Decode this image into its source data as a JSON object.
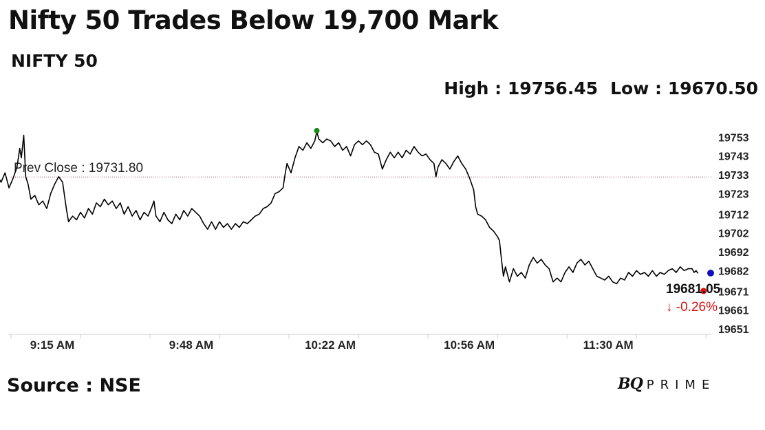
{
  "header": {
    "title": "Nifty 50 Trades Below 19,700 Mark",
    "subtitle": "NIFTY 50"
  },
  "stats": {
    "high_label": "High : 19756.45",
    "low_label": "Low : 19670.50"
  },
  "footer": {
    "source": "Source : NSE",
    "logo_bq": "BQ",
    "logo_prime": "PRIME"
  },
  "colors": {
    "line": "#000000",
    "prev_close_line": "#a05050",
    "high_marker": "#1a8a1a",
    "low_marker": "#e01010",
    "current_marker": "#1010c0",
    "change_negative": "#e01010",
    "axis": "#cccccc"
  },
  "chart_data": {
    "type": "line",
    "ylim": [
      19651,
      19763
    ],
    "y_ticks": [
      19753,
      19743,
      19733,
      19723,
      19712,
      19702,
      19692,
      19682,
      19671,
      19661,
      19651
    ],
    "x_range_minutes": [
      0,
      176
    ],
    "x_ticks": [
      {
        "label": "9:15 AM",
        "minute": 0
      },
      {
        "label": "9:48 AM",
        "minute": 35
      },
      {
        "label": "10:22 AM",
        "minute": 70
      },
      {
        "label": "10:56 AM",
        "minute": 105
      },
      {
        "label": "11:30 AM",
        "minute": 140
      }
    ],
    "prev_close": {
      "value": 19731.8,
      "label": "Prev Close : 19731.80"
    },
    "high": {
      "value": 19756.45,
      "minute": 77
    },
    "current": {
      "value": 19681.05,
      "label": "19681.05",
      "change": "-0.26%",
      "arrow": "↓"
    },
    "series": [
      {
        "points": [
          [
            -3,
            19731
          ],
          [
            -2.5,
            19729
          ],
          [
            -1.5,
            19734
          ],
          [
            -0.5,
            19726
          ],
          [
            0.5,
            19731
          ],
          [
            1.5,
            19737
          ],
          [
            2.2,
            19747
          ],
          [
            2.6,
            19742
          ],
          [
            3.2,
            19754
          ],
          [
            3.7,
            19732
          ],
          [
            4.3,
            19728
          ],
          [
            5,
            19720
          ],
          [
            6,
            19722
          ],
          [
            7,
            19717
          ],
          [
            8,
            19719
          ],
          [
            9,
            19715
          ],
          [
            10,
            19723
          ],
          [
            11,
            19728
          ],
          [
            12,
            19732
          ],
          [
            13,
            19729
          ],
          [
            14,
            19714
          ],
          [
            14.5,
            19708
          ],
          [
            15.5,
            19711
          ],
          [
            16.5,
            19709
          ],
          [
            17.5,
            19713
          ],
          [
            18.5,
            19710
          ],
          [
            19.5,
            19715
          ],
          [
            20.5,
            19712
          ],
          [
            21.5,
            19718
          ],
          [
            22.5,
            19716
          ],
          [
            23.5,
            19720
          ],
          [
            24.5,
            19717
          ],
          [
            25.5,
            19719
          ],
          [
            26.5,
            19715
          ],
          [
            27.5,
            19718
          ],
          [
            28.5,
            19712
          ],
          [
            29.5,
            19716
          ],
          [
            30.5,
            19711
          ],
          [
            31.5,
            19714
          ],
          [
            32.5,
            19709
          ],
          [
            33.5,
            19713
          ],
          [
            34.5,
            19711
          ],
          [
            35.5,
            19716
          ],
          [
            36,
            19719
          ],
          [
            36.5,
            19711
          ],
          [
            37.5,
            19708
          ],
          [
            38.5,
            19713
          ],
          [
            39.5,
            19709
          ],
          [
            40.5,
            19707
          ],
          [
            41.5,
            19712
          ],
          [
            42.5,
            19709
          ],
          [
            43.5,
            19714
          ],
          [
            44.5,
            19711
          ],
          [
            45.5,
            19715
          ],
          [
            46.5,
            19713
          ],
          [
            47.5,
            19711
          ],
          [
            48.5,
            19707
          ],
          [
            49.5,
            19704
          ],
          [
            50.5,
            19708
          ],
          [
            51.5,
            19704
          ],
          [
            52.5,
            19708
          ],
          [
            53.5,
            19705
          ],
          [
            54.5,
            19707
          ],
          [
            55.5,
            19704
          ],
          [
            56.5,
            19707
          ],
          [
            57.5,
            19705
          ],
          [
            58.5,
            19708
          ],
          [
            59.5,
            19707
          ],
          [
            60.5,
            19709
          ],
          [
            61.5,
            19711
          ],
          [
            62.5,
            19712
          ],
          [
            63.5,
            19715
          ],
          [
            64.5,
            19716
          ],
          [
            65.5,
            19718
          ],
          [
            66.5,
            19723
          ],
          [
            67.5,
            19724
          ],
          [
            68.5,
            19726
          ],
          [
            69,
            19733
          ],
          [
            69.5,
            19739
          ],
          [
            70.5,
            19734
          ],
          [
            71.5,
            19742
          ],
          [
            72.5,
            19748
          ],
          [
            73.5,
            19746
          ],
          [
            74.5,
            19750
          ],
          [
            75.5,
            19747
          ],
          [
            76.5,
            19751
          ],
          [
            77,
            19756
          ],
          [
            77.5,
            19752
          ],
          [
            78.5,
            19750
          ],
          [
            79.5,
            19752
          ],
          [
            80.5,
            19751
          ],
          [
            81.5,
            19748
          ],
          [
            82.5,
            19750
          ],
          [
            83.5,
            19746
          ],
          [
            84.5,
            19748
          ],
          [
            85.5,
            19743
          ],
          [
            86.5,
            19749
          ],
          [
            87.5,
            19751
          ],
          [
            88.5,
            19749
          ],
          [
            89.5,
            19751
          ],
          [
            90.5,
            19749
          ],
          [
            91.5,
            19745
          ],
          [
            92.5,
            19744
          ],
          [
            93.5,
            19736
          ],
          [
            94.5,
            19741
          ],
          [
            95.5,
            19745
          ],
          [
            96.5,
            19742
          ],
          [
            97.5,
            19745
          ],
          [
            98.5,
            19742
          ],
          [
            99.5,
            19746
          ],
          [
            100.5,
            19744
          ],
          [
            101.5,
            19748
          ],
          [
            102.5,
            19745
          ],
          [
            103.5,
            19743
          ],
          [
            104.5,
            19744
          ],
          [
            105.5,
            19741
          ],
          [
            106.5,
            19739
          ],
          [
            107,
            19732
          ],
          [
            107.5,
            19737
          ],
          [
            108.5,
            19741
          ],
          [
            109.5,
            19739
          ],
          [
            110.5,
            19736
          ],
          [
            111.5,
            19740
          ],
          [
            112.5,
            19743
          ],
          [
            113.5,
            19739
          ],
          [
            114.5,
            19736
          ],
          [
            115.5,
            19731
          ],
          [
            116.5,
            19725
          ],
          [
            117,
            19716
          ],
          [
            117.5,
            19712
          ],
          [
            118.5,
            19711
          ],
          [
            119.5,
            19709
          ],
          [
            120.5,
            19705
          ],
          [
            121.5,
            19703
          ],
          [
            122.5,
            19700
          ],
          [
            123,
            19698
          ],
          [
            123.5,
            19688
          ],
          [
            124,
            19679
          ],
          [
            124.5,
            19684
          ],
          [
            125.5,
            19676
          ],
          [
            126.5,
            19683
          ],
          [
            127.5,
            19679
          ],
          [
            128.5,
            19681
          ],
          [
            129.5,
            19678
          ],
          [
            130.5,
            19685
          ],
          [
            131.5,
            19689
          ],
          [
            132.5,
            19686
          ],
          [
            133.5,
            19688
          ],
          [
            134.5,
            19685
          ],
          [
            135.5,
            19683
          ],
          [
            136.5,
            19676
          ],
          [
            137.5,
            19678
          ],
          [
            138.5,
            19676
          ],
          [
            139.5,
            19681
          ],
          [
            140.5,
            19684
          ],
          [
            141.5,
            19681
          ],
          [
            142.5,
            19686
          ],
          [
            143.5,
            19688
          ],
          [
            144.5,
            19685
          ],
          [
            145.5,
            19687
          ],
          [
            146.5,
            19683
          ],
          [
            147.5,
            19679
          ],
          [
            148.5,
            19678
          ],
          [
            149.5,
            19677
          ],
          [
            150.5,
            19679
          ],
          [
            151.5,
            19676
          ],
          [
            152.5,
            19675
          ],
          [
            153.5,
            19678
          ],
          [
            154.5,
            19677
          ],
          [
            155.5,
            19681
          ],
          [
            156.5,
            19679
          ],
          [
            157.5,
            19682
          ],
          [
            158.5,
            19680
          ],
          [
            159.5,
            19681
          ],
          [
            160.5,
            19679
          ],
          [
            161.5,
            19682
          ],
          [
            162.5,
            19679
          ],
          [
            163.5,
            19681
          ],
          [
            164.5,
            19680
          ],
          [
            165.5,
            19682
          ],
          [
            166.5,
            19683
          ],
          [
            167.5,
            19681
          ],
          [
            168.5,
            19684
          ],
          [
            169.5,
            19682
          ],
          [
            170.5,
            19683
          ],
          [
            171.5,
            19683
          ],
          [
            172,
            19681
          ],
          [
            172.5,
            19682
          ],
          [
            173,
            19680.5
          ]
        ]
      }
    ]
  }
}
